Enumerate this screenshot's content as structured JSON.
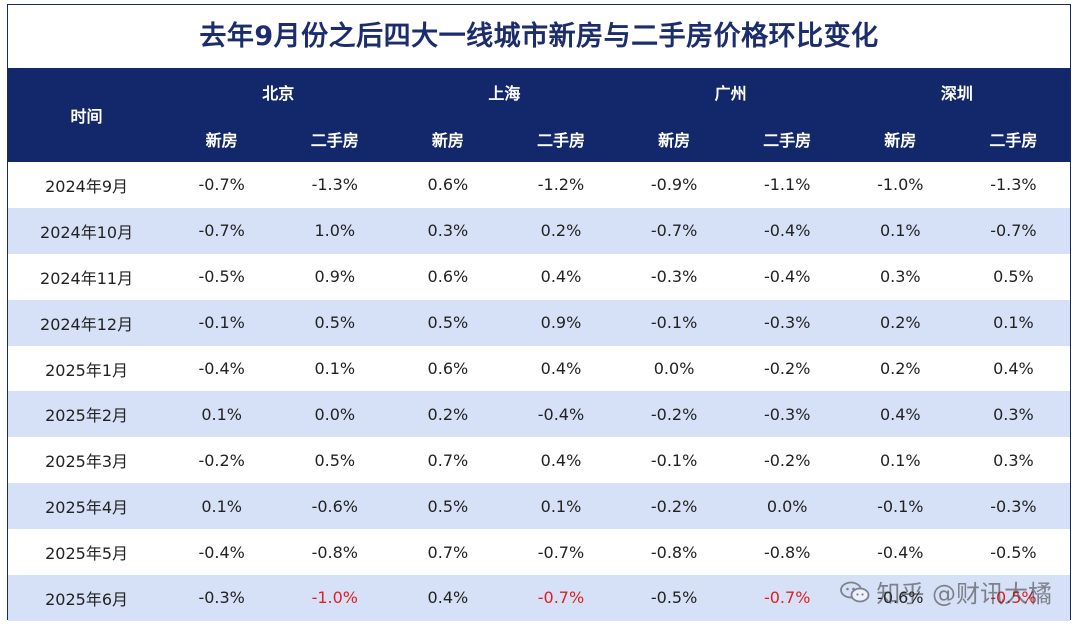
{
  "title": "去年9月份之后四大一线城市新房与二手房价格环比变化",
  "header": {
    "time_label": "时间",
    "cities": [
      "北京",
      "上海",
      "广州",
      "深圳"
    ],
    "sub_labels": [
      "新房",
      "二手房"
    ]
  },
  "rows": [
    {
      "date": "2024年9月",
      "values": [
        "-0.7%",
        "-1.3%",
        "0.6%",
        "-1.2%",
        "-0.9%",
        "-1.1%",
        "-1.0%",
        "-1.3%"
      ]
    },
    {
      "date": "2024年10月",
      "values": [
        "-0.7%",
        "1.0%",
        "0.3%",
        "0.2%",
        "-0.7%",
        "-0.4%",
        "0.1%",
        "-0.7%"
      ]
    },
    {
      "date": "2024年11月",
      "values": [
        "-0.5%",
        "0.9%",
        "0.6%",
        "0.4%",
        "-0.3%",
        "-0.4%",
        "0.3%",
        "0.5%"
      ]
    },
    {
      "date": "2024年12月",
      "values": [
        "-0.1%",
        "0.5%",
        "0.5%",
        "0.9%",
        "-0.1%",
        "-0.3%",
        "0.2%",
        "0.1%"
      ]
    },
    {
      "date": "2025年1月",
      "values": [
        "-0.4%",
        "0.1%",
        "0.6%",
        "0.4%",
        "0.0%",
        "-0.2%",
        "0.2%",
        "0.4%"
      ]
    },
    {
      "date": "2025年2月",
      "values": [
        "0.1%",
        "0.0%",
        "0.2%",
        "-0.4%",
        "-0.2%",
        "-0.3%",
        "0.4%",
        "0.3%"
      ]
    },
    {
      "date": "2025年3月",
      "values": [
        "-0.2%",
        "0.5%",
        "0.7%",
        "0.4%",
        "-0.1%",
        "-0.2%",
        "0.1%",
        "0.3%"
      ]
    },
    {
      "date": "2025年4月",
      "values": [
        "0.1%",
        "-0.6%",
        "0.5%",
        "0.1%",
        "-0.2%",
        "0.0%",
        "-0.1%",
        "-0.3%"
      ]
    },
    {
      "date": "2025年5月",
      "values": [
        "-0.4%",
        "-0.8%",
        "0.7%",
        "-0.7%",
        "-0.8%",
        "-0.8%",
        "-0.4%",
        "-0.5%"
      ]
    },
    {
      "date": "2025年6月",
      "values": [
        "-0.3%",
        "-1.0%",
        "0.4%",
        "-0.7%",
        "-0.5%",
        "-0.7%",
        "-0.6%",
        "-0.5%"
      ]
    }
  ],
  "highlight_red_cells": [
    [
      9,
      1
    ],
    [
      9,
      3
    ],
    [
      9,
      5
    ],
    [
      9,
      7
    ]
  ],
  "colors": {
    "header_bg": "#13286a",
    "title_text": "#1c2d6e",
    "alt_row_bg": "#d6e1f7",
    "highlight_red": "#e02020"
  },
  "watermark": "知乎 @财讯大橘"
}
